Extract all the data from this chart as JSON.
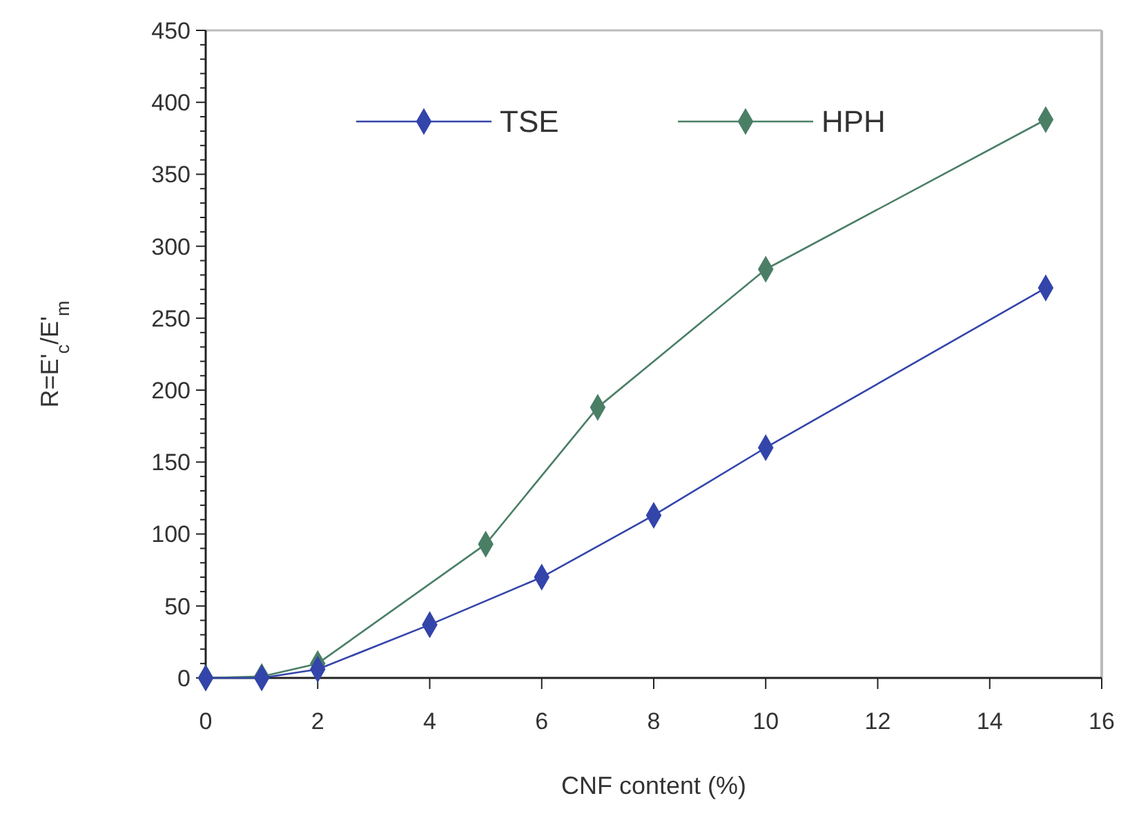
{
  "chart_data": {
    "type": "line",
    "xlabel": "CNF content (%)",
    "ylabel": "R=E'$_{c}$/E'$_{m}$",
    "xlim": [
      0,
      16
    ],
    "xticks": [
      0,
      2,
      4,
      6,
      8,
      10,
      12,
      14,
      16
    ],
    "ylim": [
      0,
      450
    ],
    "yticks": [
      0,
      50,
      100,
      150,
      200,
      250,
      300,
      350,
      400,
      450
    ],
    "marker": "diamond",
    "legend": "top",
    "grid": false,
    "series": [
      {
        "name": "TSE",
        "color": "#3344aa",
        "x": [
          0,
          1,
          2,
          4,
          6,
          8,
          10,
          15
        ],
        "values": [
          0,
          0,
          6,
          37,
          70,
          113,
          160,
          271
        ]
      },
      {
        "name": "HPH",
        "color": "#4a7f66",
        "x": [
          0,
          1,
          2,
          5,
          7,
          10,
          15
        ],
        "values": [
          0,
          1,
          10,
          93,
          188,
          284,
          388
        ]
      }
    ]
  }
}
